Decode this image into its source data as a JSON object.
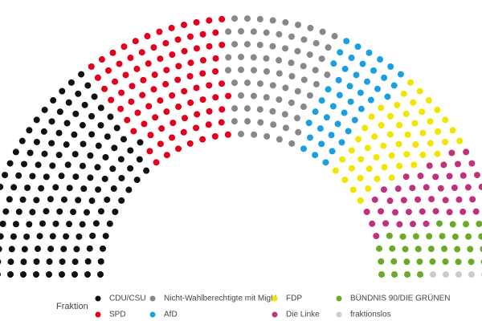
{
  "chart_data": {
    "type": "parliament",
    "legend_title": "Fraktion",
    "categories": [
      "CDU/CSU",
      "SPD",
      "Nicht-Wahlberechtigte mit MigH",
      "AfD",
      "FDP",
      "Die Linke",
      "BÜNDNIS 90/DIE GRÜNEN",
      "fraktionslos"
    ],
    "values": [
      146,
      92,
      73,
      44,
      53,
      44,
      39,
      6
    ],
    "colors": [
      "#111111",
      "#e3001b",
      "#888888",
      "#1aa0e0",
      "#f2e500",
      "#c0317d",
      "#6aaa2a",
      "#cccccc"
    ]
  }
}
